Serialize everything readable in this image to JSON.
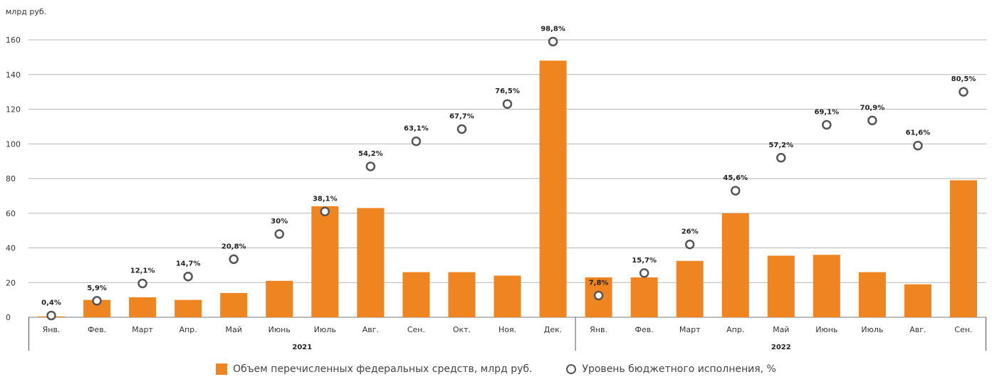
{
  "chart_data": {
    "type": "bar",
    "ylabel": "млрд руб.",
    "ylim": [
      0,
      160
    ],
    "yticks": [
      "0",
      "20",
      "40",
      "60",
      "80",
      "100",
      "120",
      "140",
      "160"
    ],
    "categories": [
      "Янв.",
      "Фев.",
      "Март",
      "Апр.",
      "Май",
      "Июнь",
      "Июль",
      "Авг.",
      "Сен.",
      "Окт.",
      "Ноя.",
      "Дек.",
      "Янв.",
      "Фев.",
      "Март",
      "Апр.",
      "Май",
      "Июнь",
      "Июль",
      "Авг.",
      "Сен."
    ],
    "groups": [
      {
        "label": "2021",
        "start": 0,
        "end": 11
      },
      {
        "label": "2022",
        "start": 12,
        "end": 20
      }
    ],
    "series": [
      {
        "name": "Объем перечисленных федеральных средств, млрд руб.",
        "type": "bar",
        "color": "#ef8520",
        "values": [
          0.5,
          10,
          11.5,
          10,
          14,
          21,
          64,
          63,
          26,
          26,
          24,
          148,
          23,
          23,
          32.5,
          60,
          35.5,
          36,
          26,
          19,
          79
        ]
      },
      {
        "name": "Уровень бюджетного исполнения, %",
        "type": "scatter",
        "color": "#555555",
        "values": [
          1,
          9.5,
          19.5,
          23.5,
          33.5,
          48,
          61,
          87,
          101.5,
          108.5,
          123,
          159,
          12.5,
          25.5,
          42,
          73,
          92,
          111,
          113.5,
          99,
          130
        ],
        "labels": [
          "0,4%",
          "5,9%",
          "12,1%",
          "14,7%",
          "20,8%",
          "30%",
          "38,1%",
          "54,2%",
          "63,1%",
          "67,7%",
          "76,5%",
          "98,8%",
          "7,8%",
          "15,7%",
          "26%",
          "45,6%",
          "57,2%",
          "69,1%",
          "70,9%",
          "61,6%",
          "80,5%"
        ]
      }
    ],
    "grid": true,
    "legend": "bottom-center"
  }
}
